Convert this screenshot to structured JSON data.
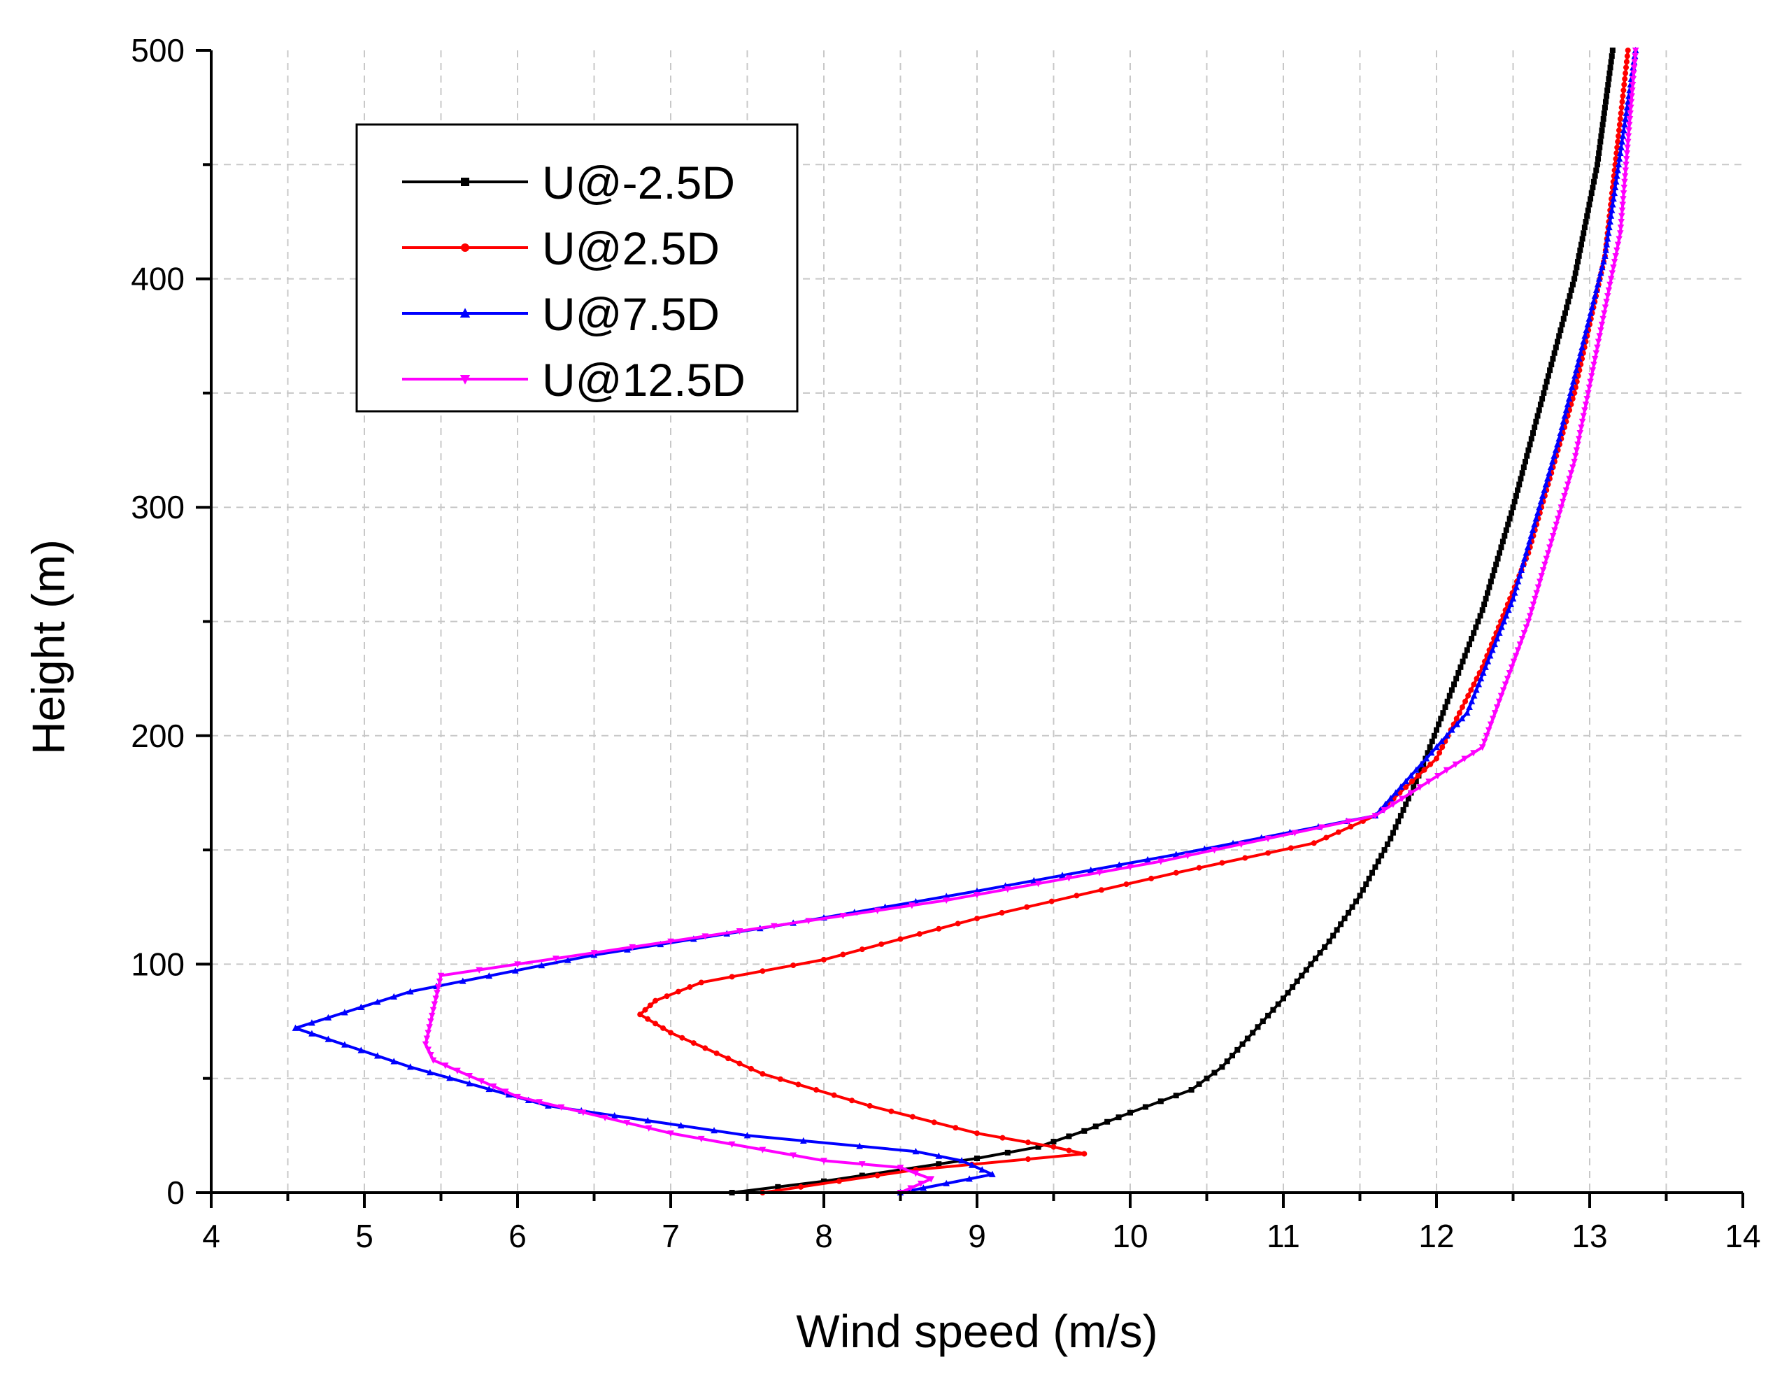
{
  "chart_data": {
    "type": "line",
    "title": "",
    "xlabel": "Wind speed (m/s)",
    "ylabel": "Height (m)",
    "xlim": [
      4,
      14
    ],
    "ylim": [
      0,
      500
    ],
    "xticks": [
      4,
      5,
      6,
      7,
      8,
      9,
      10,
      11,
      12,
      13,
      14
    ],
    "yticks": [
      0,
      100,
      200,
      300,
      400,
      500
    ],
    "grid": true,
    "legend_position": "top-left",
    "series": [
      {
        "name": "U@-2.5D",
        "color": "#000000",
        "marker": "square",
        "points": [
          [
            7.4,
            0
          ],
          [
            8.0,
            5
          ],
          [
            8.5,
            10
          ],
          [
            9.0,
            15
          ],
          [
            9.4,
            20
          ],
          [
            9.7,
            27
          ],
          [
            10.0,
            35
          ],
          [
            10.4,
            45
          ],
          [
            10.6,
            55
          ],
          [
            10.8,
            70
          ],
          [
            11.0,
            85
          ],
          [
            11.3,
            110
          ],
          [
            11.5,
            130
          ],
          [
            11.7,
            155
          ],
          [
            11.9,
            185
          ],
          [
            12.1,
            220
          ],
          [
            12.3,
            255
          ],
          [
            12.5,
            300
          ],
          [
            12.7,
            350
          ],
          [
            12.9,
            400
          ],
          [
            13.05,
            450
          ],
          [
            13.15,
            500
          ]
        ]
      },
      {
        "name": "U@2.5D",
        "color": "#ff0000",
        "marker": "circle",
        "points": [
          [
            7.6,
            0
          ],
          [
            8.6,
            10
          ],
          [
            9.7,
            17
          ],
          [
            9.5,
            20
          ],
          [
            9.0,
            26
          ],
          [
            8.3,
            38
          ],
          [
            7.6,
            52
          ],
          [
            7.0,
            70
          ],
          [
            6.8,
            78
          ],
          [
            6.9,
            84
          ],
          [
            7.2,
            92
          ],
          [
            8.0,
            102
          ],
          [
            9.0,
            120
          ],
          [
            10.3,
            140
          ],
          [
            11.2,
            153
          ],
          [
            11.6,
            165
          ],
          [
            12.0,
            190
          ],
          [
            12.3,
            230
          ],
          [
            12.6,
            280
          ],
          [
            12.9,
            350
          ],
          [
            13.1,
            410
          ],
          [
            13.25,
            500
          ]
        ]
      },
      {
        "name": "U@7.5D",
        "color": "#0000ff",
        "marker": "triangle-up",
        "points": [
          [
            8.5,
            0
          ],
          [
            9.1,
            8
          ],
          [
            8.9,
            14
          ],
          [
            8.6,
            18
          ],
          [
            7.5,
            25
          ],
          [
            6.2,
            38
          ],
          [
            5.3,
            55
          ],
          [
            4.55,
            72
          ],
          [
            5.3,
            88
          ],
          [
            6.5,
            104
          ],
          [
            7.8,
            118
          ],
          [
            9.0,
            132
          ],
          [
            10.3,
            148
          ],
          [
            11.6,
            165
          ],
          [
            12.2,
            210
          ],
          [
            12.5,
            260
          ],
          [
            12.8,
            330
          ],
          [
            13.1,
            410
          ],
          [
            13.3,
            500
          ]
        ]
      },
      {
        "name": "U@12.5D",
        "color": "#ff00ff",
        "marker": "triangle-down",
        "points": [
          [
            8.5,
            0
          ],
          [
            8.7,
            6
          ],
          [
            8.5,
            11
          ],
          [
            8.0,
            14
          ],
          [
            7.0,
            26
          ],
          [
            6.0,
            42
          ],
          [
            5.45,
            58
          ],
          [
            5.4,
            65
          ],
          [
            5.45,
            80
          ],
          [
            5.5,
            95
          ],
          [
            7.0,
            110
          ],
          [
            8.8,
            128
          ],
          [
            10.2,
            145
          ],
          [
            11.6,
            165
          ],
          [
            12.3,
            195
          ],
          [
            12.6,
            250
          ],
          [
            12.9,
            320
          ],
          [
            13.2,
            420
          ],
          [
            13.3,
            500
          ]
        ]
      }
    ]
  }
}
